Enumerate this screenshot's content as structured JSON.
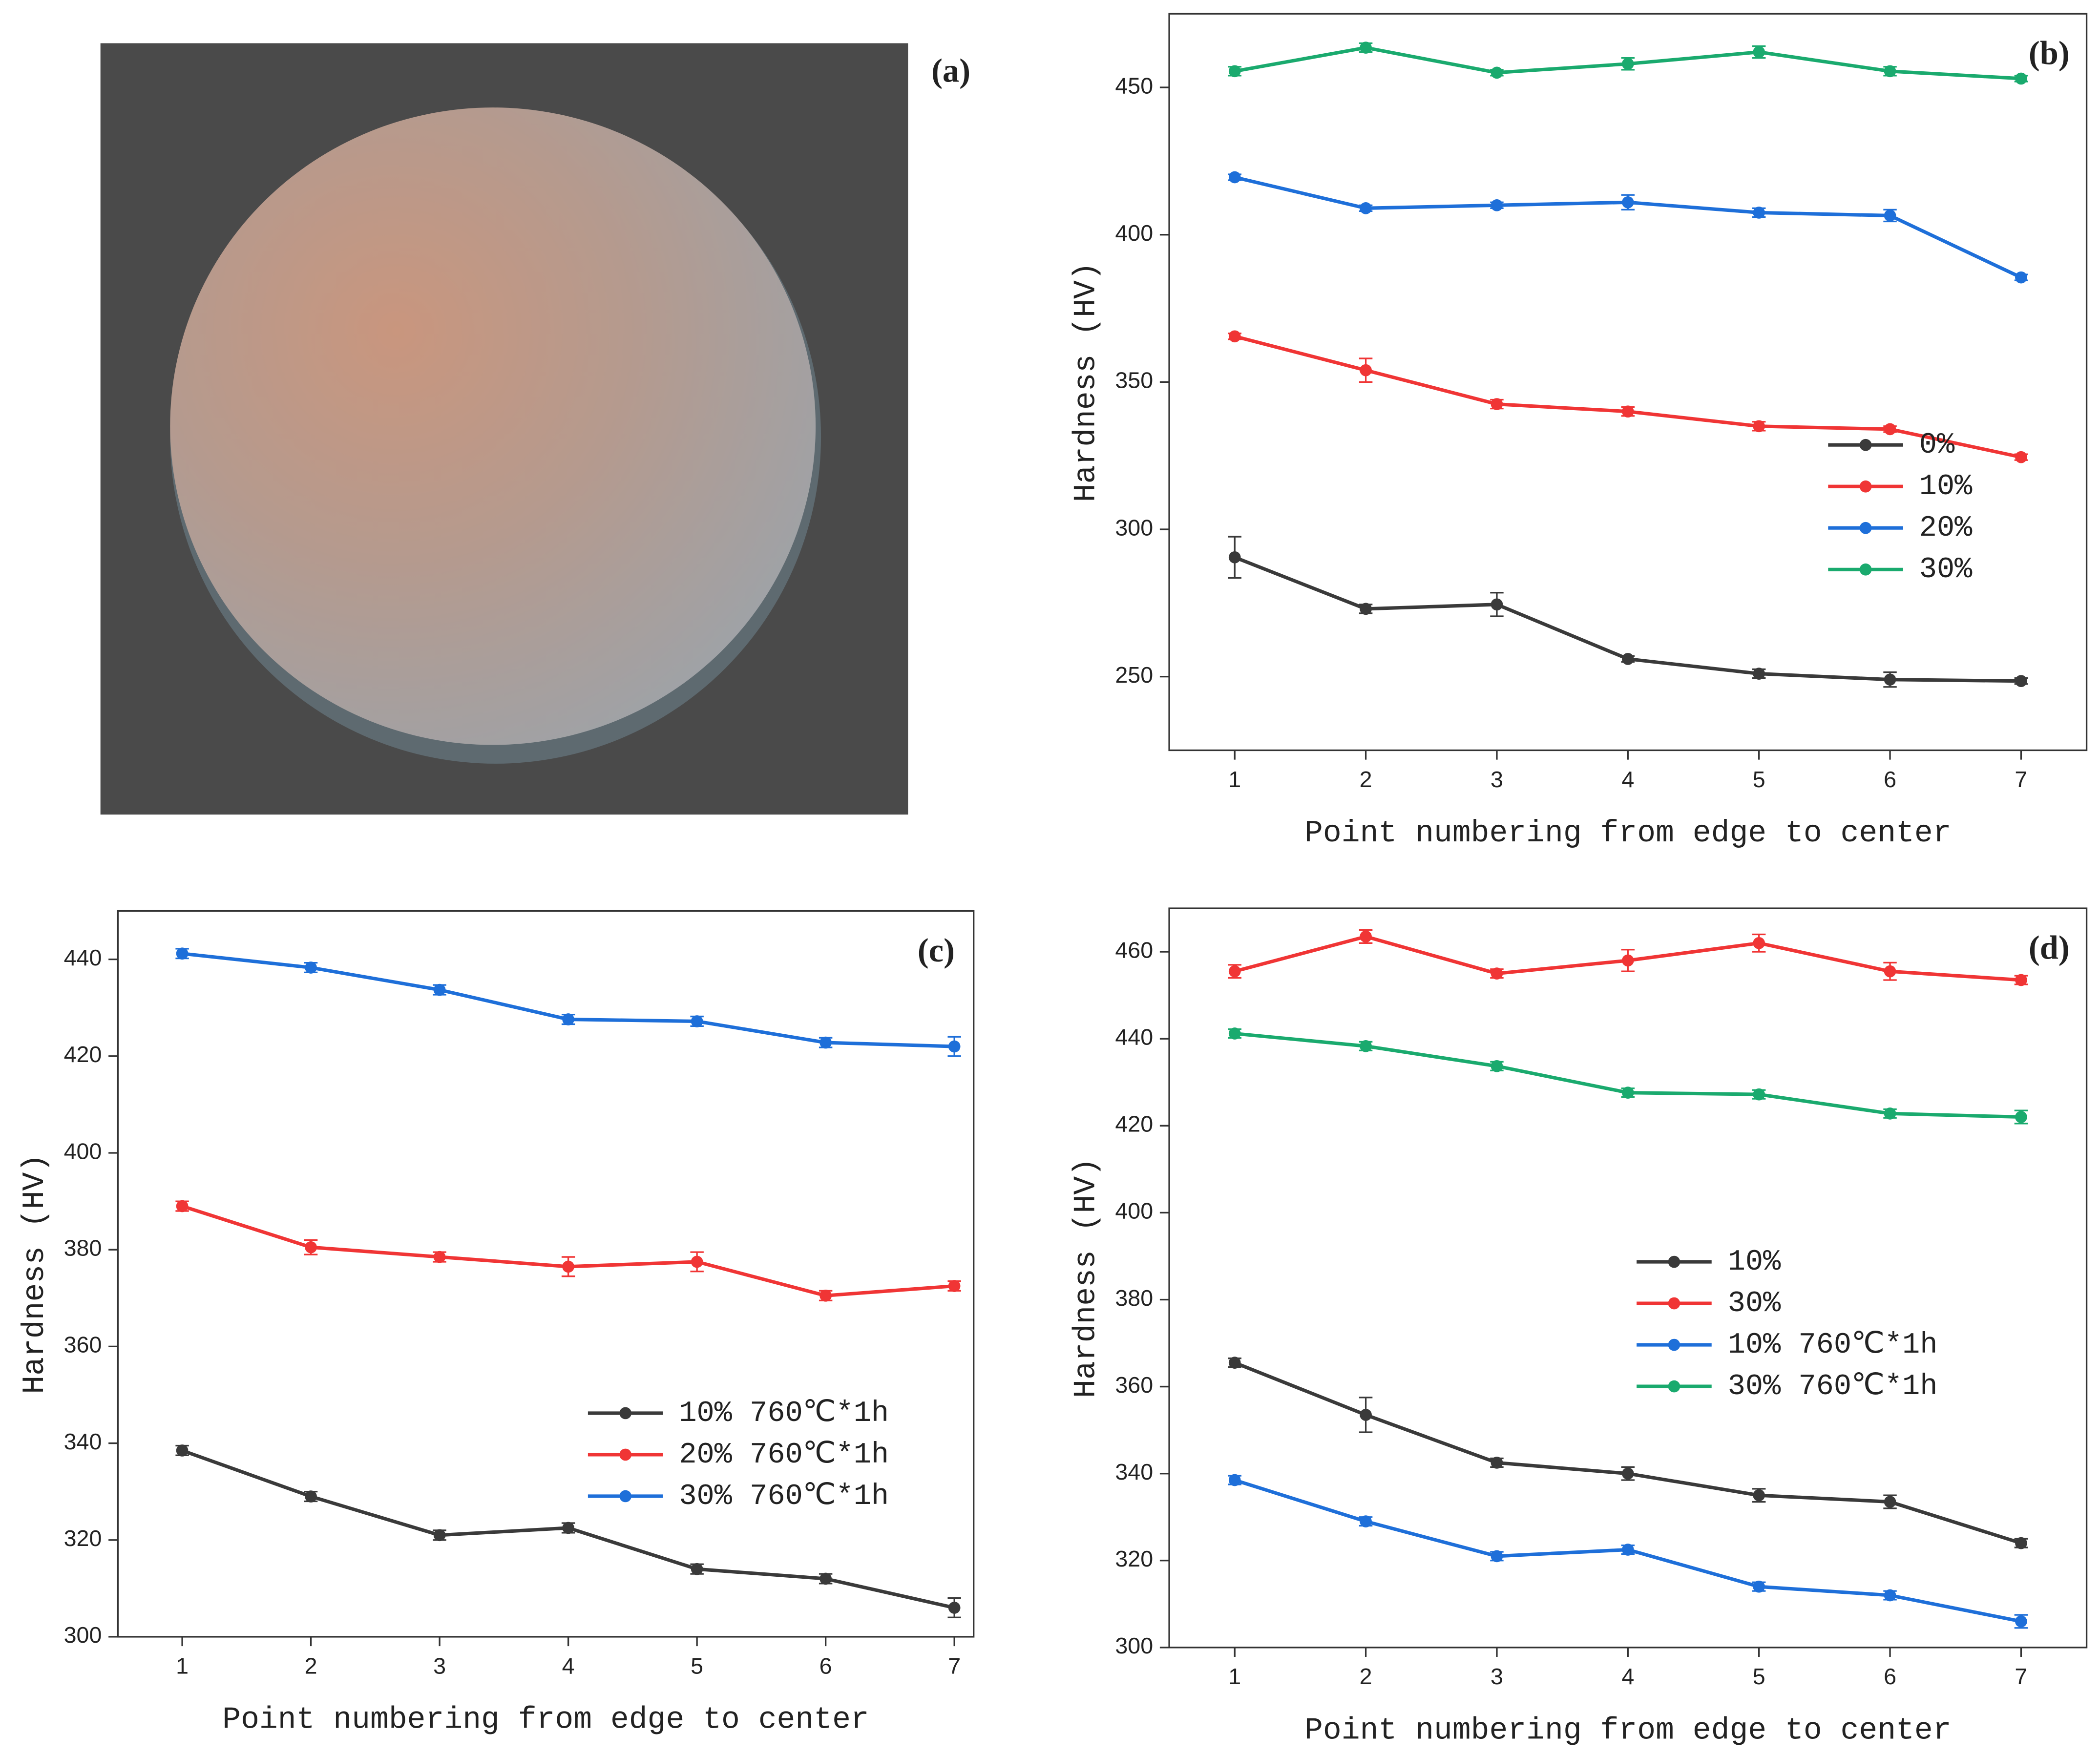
{
  "photo": {
    "label": "(a)"
  },
  "chart_data": [
    {
      "type": "line",
      "label": "(b)",
      "x_label": "Point numbering from edge to center",
      "y_label": "Hardness (HV)",
      "x": [
        1,
        2,
        3,
        4,
        5,
        6,
        7
      ],
      "xlim": [
        0.5,
        7.5
      ],
      "xticks": [
        1,
        2,
        3,
        4,
        5,
        6,
        7
      ],
      "ylim": [
        225,
        475
      ],
      "yticks": [
        250,
        300,
        350,
        400,
        450
      ],
      "legend": "lower right",
      "series": [
        {
          "name": "0%",
          "color": "#3a3a3a",
          "values": [
            290.5,
            273,
            274.5,
            256,
            251,
            249,
            248.5
          ],
          "errors": [
            7,
            1.5,
            4,
            1,
            1.5,
            2.5,
            1
          ]
        },
        {
          "name": "10%",
          "color": "#f03535",
          "values": [
            365.5,
            354,
            342.5,
            340,
            335,
            334,
            324.5
          ],
          "errors": [
            1,
            4,
            1.5,
            1.5,
            1.5,
            1,
            1
          ]
        },
        {
          "name": "20%",
          "color": "#1e6fd9",
          "values": [
            419.5,
            409,
            410,
            411,
            407.5,
            406.5,
            385.5
          ],
          "errors": [
            1,
            1,
            1,
            2.5,
            1.5,
            2,
            1
          ]
        },
        {
          "name": "30%",
          "color": "#1aaa6e",
          "values": [
            455.5,
            463.5,
            455,
            458,
            462,
            455.5,
            453
          ],
          "errors": [
            1.5,
            1.5,
            1,
            2,
            2,
            1.5,
            1
          ]
        }
      ]
    },
    {
      "type": "line",
      "label": "(c)",
      "x_label": "Point numbering from edge to center",
      "y_label": "Hardness (HV)",
      "x": [
        1,
        2,
        3,
        4,
        5,
        6,
        7
      ],
      "xlim": [
        0.5,
        7.15
      ],
      "xticks": [
        1,
        2,
        3,
        4,
        5,
        6,
        7
      ],
      "ylim": [
        300,
        450
      ],
      "yticks": [
        300,
        320,
        340,
        360,
        380,
        400,
        420,
        440
      ],
      "legend": "lower right",
      "series": [
        {
          "name": "10%  760℃*1h",
          "color": "#3a3a3a",
          "values": [
            338.5,
            329,
            321,
            322.5,
            314,
            312,
            306
          ],
          "errors": [
            1,
            1,
            1,
            1,
            1,
            1,
            2
          ]
        },
        {
          "name": "20%  760℃*1h",
          "color": "#f03535",
          "values": [
            389,
            380.5,
            378.5,
            376.5,
            377.5,
            370.5,
            372.5
          ],
          "errors": [
            1,
            1.5,
            1,
            2,
            2,
            1,
            1
          ]
        },
        {
          "name": "30%  760℃*1h",
          "color": "#1e6fd9",
          "values": [
            441.2,
            438.3,
            433.7,
            427.6,
            427.2,
            422.8,
            422
          ],
          "errors": [
            1,
            1,
            1,
            1,
            1,
            1,
            2
          ]
        }
      ]
    },
    {
      "type": "line",
      "label": "(d)",
      "x_label": "Point numbering from edge to center",
      "y_label": "Hardness (HV)",
      "x": [
        1,
        2,
        3,
        4,
        5,
        6,
        7
      ],
      "xlim": [
        0.5,
        7.5
      ],
      "xticks": [
        1,
        2,
        3,
        4,
        5,
        6,
        7
      ],
      "ylim": [
        300,
        470
      ],
      "yticks": [
        300,
        320,
        340,
        360,
        380,
        400,
        420,
        440,
        460
      ],
      "legend": "center right",
      "series": [
        {
          "name": "10%",
          "color": "#3a3a3a",
          "values": [
            365.5,
            353.5,
            342.5,
            340,
            335,
            333.5,
            324
          ],
          "errors": [
            1,
            4,
            1,
            1.5,
            1.5,
            1.5,
            1
          ]
        },
        {
          "name": "30%",
          "color": "#f03535",
          "values": [
            455.5,
            463.5,
            455,
            458,
            462,
            455.5,
            453.5
          ],
          "errors": [
            1.5,
            1.5,
            1,
            2.5,
            2,
            2,
            1
          ]
        },
        {
          "name": "10%  760℃*1h",
          "color": "#1e6fd9",
          "values": [
            338.5,
            329,
            321,
            322.5,
            314,
            312,
            306
          ],
          "errors": [
            1,
            1,
            1,
            1,
            1,
            1,
            1.5
          ]
        },
        {
          "name": "30%  760℃*1h",
          "color": "#1aaa6e",
          "values": [
            441.2,
            438.3,
            433.7,
            427.6,
            427.2,
            422.8,
            422
          ],
          "errors": [
            1,
            1,
            1,
            1,
            1,
            1,
            1.5
          ]
        }
      ]
    }
  ]
}
